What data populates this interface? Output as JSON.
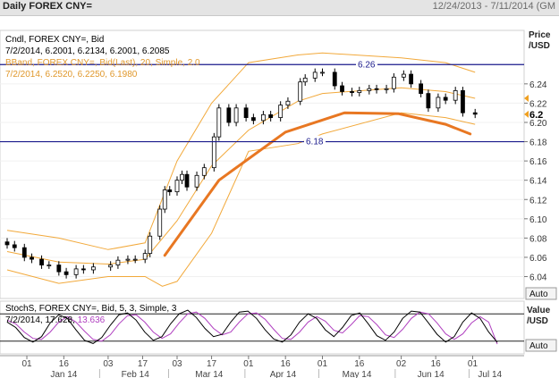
{
  "window": {
    "title": "Daily FOREX CNY=",
    "range_info": "12/24/2013 - 7/11/2014 (GM"
  },
  "main_panel": {
    "legend": [
      {
        "text": "Cndl, FOREX CNY=, Bid",
        "color": "#000000"
      },
      {
        "text": "7/2/2014, 6.2001, 6.2134, 6.2001, 6.2085",
        "color": "#000000"
      },
      {
        "text": "BBand, FOREX CNY=, Bid(Last),  20, Simple, 2.0",
        "color": "#e8a13c"
      },
      {
        "text": "7/2/2014, 6.2520, 6.2250, 6.1980",
        "color": "#e8a13c"
      }
    ],
    "axis_title_1": "Price",
    "axis_title_2": "/USD",
    "auto_label": "Auto",
    "hline_labels": [
      "6.26",
      "6.18"
    ],
    "last_value_label": "6.2"
  },
  "stoch_panel": {
    "legend_1": "StochS, FOREX CNY=, Bid,  5, 3, Simple, 3",
    "legend_2_prefix": "7/2/2014, 17.628, ",
    "legend_2_value": "13.636",
    "axis_title_1": "Value",
    "axis_title_2": "/USD",
    "auto_label": "Auto"
  },
  "x_axis": {
    "day_ticks": [
      "01",
      "16",
      "03",
      "17",
      "03",
      "17",
      "01",
      "16",
      "01",
      "16",
      "02",
      "16",
      "01"
    ],
    "month_labels": [
      "Jan 14",
      "Feb 14",
      "Mar 14",
      "Apr 14",
      "May 14",
      "Jun 14",
      "Jul 14"
    ]
  },
  "colors": {
    "candle": "#000000",
    "bband": "#f2a93b",
    "trend_arc": "#e87722",
    "hline": "#1a1a8c",
    "stoch_k": "#000000",
    "stoch_d": "#b040c0",
    "pointer": "#f0a020"
  },
  "chart_data": [
    {
      "type": "candlestick",
      "title": "Daily FOREX CNY=",
      "ylabel": "Price /USD",
      "ylim": [
        6.0173,
        6.2955
      ],
      "yticks": [
        6.04,
        6.06,
        6.08,
        6.1,
        6.12,
        6.14,
        6.16,
        6.18,
        6.2,
        6.22,
        6.24
      ],
      "x_range": [
        "2013-12-24",
        "2014-07-11"
      ],
      "horizontal_lines": [
        6.26,
        6.18
      ],
      "series": [
        {
          "name": "Cndl, FOREX CNY=, Bid",
          "last": {
            "date": "2014-07-02",
            "open": 6.2001,
            "high": 6.2134,
            "low": 6.2001,
            "close": 6.2085
          },
          "close_points": [
            [
              "2013-12-24",
              6.073
            ],
            [
              "2013-12-27",
              6.07
            ],
            [
              "2013-12-31",
              6.06
            ],
            [
              "2014-01-03",
              6.058
            ],
            [
              "2014-01-07",
              6.052
            ],
            [
              "2014-01-10",
              6.052
            ],
            [
              "2014-01-14",
              6.045
            ],
            [
              "2014-01-17",
              6.042
            ],
            [
              "2014-01-21",
              6.048
            ],
            [
              "2014-01-24",
              6.047
            ],
            [
              "2014-01-28",
              6.05
            ],
            [
              "2014-02-04",
              6.052
            ],
            [
              "2014-02-07",
              6.057
            ],
            [
              "2014-02-11",
              6.058
            ],
            [
              "2014-02-14",
              6.058
            ],
            [
              "2014-02-18",
              6.064
            ],
            [
              "2014-02-20",
              6.082
            ],
            [
              "2014-02-24",
              6.11
            ],
            [
              "2014-02-26",
              6.13
            ],
            [
              "2014-02-28",
              6.128
            ],
            [
              "2014-03-03",
              6.14
            ],
            [
              "2014-03-05",
              6.146
            ],
            [
              "2014-03-07",
              6.133
            ],
            [
              "2014-03-11",
              6.145
            ],
            [
              "2014-03-14",
              6.153
            ],
            [
              "2014-03-18",
              6.185
            ],
            [
              "2014-03-20",
              6.215
            ],
            [
              "2014-03-24",
              6.2
            ],
            [
              "2014-03-27",
              6.215
            ],
            [
              "2014-03-31",
              6.205
            ],
            [
              "2014-04-03",
              6.202
            ],
            [
              "2014-04-07",
              6.208
            ],
            [
              "2014-04-10",
              6.205
            ],
            [
              "2014-04-14",
              6.218
            ],
            [
              "2014-04-17",
              6.222
            ],
            [
              "2014-04-22",
              6.242
            ],
            [
              "2014-04-24",
              6.246
            ],
            [
              "2014-04-28",
              6.252
            ],
            [
              "2014-05-01",
              6.252
            ],
            [
              "2014-05-06",
              6.238
            ],
            [
              "2014-05-09",
              6.232
            ],
            [
              "2014-05-13",
              6.231
            ],
            [
              "2014-05-16",
              6.233
            ],
            [
              "2014-05-20",
              6.235
            ],
            [
              "2014-05-23",
              6.234
            ],
            [
              "2014-05-27",
              6.235
            ],
            [
              "2014-05-30",
              6.247
            ],
            [
              "2014-06-03",
              6.25
            ],
            [
              "2014-06-06",
              6.24
            ],
            [
              "2014-06-10",
              6.23
            ],
            [
              "2014-06-13",
              6.215
            ],
            [
              "2014-06-17",
              6.226
            ],
            [
              "2014-06-20",
              6.223
            ],
            [
              "2014-06-24",
              6.233
            ],
            [
              "2014-06-27",
              6.21
            ],
            [
              "2014-07-02",
              6.2085
            ]
          ]
        },
        {
          "name": "BBand upper",
          "last": {
            "date": "2014-07-02",
            "value": 6.252
          },
          "points": [
            [
              "2013-12-24",
              6.088
            ],
            [
              "2014-01-14",
              6.08
            ],
            [
              "2014-02-03",
              6.068
            ],
            [
              "2014-02-18",
              6.075
            ],
            [
              "2014-03-03",
              6.16
            ],
            [
              "2014-03-17",
              6.22
            ],
            [
              "2014-04-01",
              6.262
            ],
            [
              "2014-04-21",
              6.27
            ],
            [
              "2014-05-01",
              6.272
            ],
            [
              "2014-06-02",
              6.267
            ],
            [
              "2014-06-20",
              6.262
            ],
            [
              "2014-07-02",
              6.252
            ]
          ]
        },
        {
          "name": "BBand middle",
          "last": {
            "date": "2014-07-02",
            "value": 6.225
          },
          "points": [
            [
              "2013-12-24",
              6.066
            ],
            [
              "2014-01-14",
              6.055
            ],
            [
              "2014-02-03",
              6.053
            ],
            [
              "2014-02-18",
              6.058
            ],
            [
              "2014-03-03",
              6.098
            ],
            [
              "2014-03-17",
              6.155
            ],
            [
              "2014-04-01",
              6.192
            ],
            [
              "2014-04-21",
              6.222
            ],
            [
              "2014-05-01",
              6.23
            ],
            [
              "2014-06-02",
              6.236
            ],
            [
              "2014-06-20",
              6.232
            ],
            [
              "2014-07-02",
              6.225
            ]
          ]
        },
        {
          "name": "BBand lower",
          "last": {
            "date": "2014-07-02",
            "value": 6.198
          },
          "points": [
            [
              "2013-12-24",
              6.047
            ],
            [
              "2014-01-14",
              6.033
            ],
            [
              "2014-02-03",
              6.04
            ],
            [
              "2014-02-18",
              6.04
            ],
            [
              "2014-02-25",
              6.03
            ],
            [
              "2014-03-03",
              6.035
            ],
            [
              "2014-03-17",
              6.085
            ],
            [
              "2014-04-01",
              6.17
            ],
            [
              "2014-04-21",
              6.178
            ],
            [
              "2014-05-01",
              6.188
            ],
            [
              "2014-06-02",
              6.21
            ],
            [
              "2014-06-20",
              6.205
            ],
            [
              "2014-07-02",
              6.198
            ]
          ]
        }
      ],
      "trend_arc": [
        [
          "2014-02-26",
          6.062
        ],
        [
          "2014-03-20",
          6.14
        ],
        [
          "2014-04-16",
          6.19
        ],
        [
          "2014-05-10",
          6.21
        ],
        [
          "2014-06-01",
          6.209
        ],
        [
          "2014-06-20",
          6.198
        ],
        [
          "2014-06-30",
          6.188
        ]
      ],
      "last_value": 6.2085
    },
    {
      "type": "line",
      "title": "StochS, FOREX CNY=, Bid, 5, 3, Simple, 3",
      "ylim": [
        0,
        100
      ],
      "reference_lines": [
        80,
        20
      ],
      "series": [
        {
          "name": "%K",
          "last": 17.628,
          "values": [
            62,
            50,
            28,
            18,
            30,
            60,
            78,
            70,
            45,
            22,
            15,
            28,
            55,
            78,
            82,
            66,
            40,
            22,
            30,
            58,
            80,
            88,
            72,
            48,
            30,
            35,
            62,
            84,
            86,
            70,
            45,
            25,
            18,
            34,
            62,
            80,
            70,
            45,
            30,
            50,
            76,
            82,
            58,
            32,
            22,
            40,
            70,
            86,
            84,
            60,
            35,
            18,
            30,
            62,
            82,
            70,
            40,
            17.6
          ]
        },
        {
          "name": "%D",
          "last": 13.636,
          "values": [
            66,
            58,
            40,
            26,
            24,
            40,
            62,
            74,
            62,
            42,
            24,
            20,
            34,
            58,
            76,
            78,
            62,
            40,
            26,
            36,
            60,
            80,
            84,
            70,
            48,
            34,
            40,
            62,
            80,
            82,
            68,
            46,
            26,
            24,
            40,
            62,
            74,
            64,
            44,
            38,
            56,
            76,
            74,
            56,
            34,
            28,
            46,
            70,
            84,
            80,
            60,
            36,
            24,
            36,
            60,
            74,
            62,
            13.6
          ]
        }
      ]
    }
  ]
}
